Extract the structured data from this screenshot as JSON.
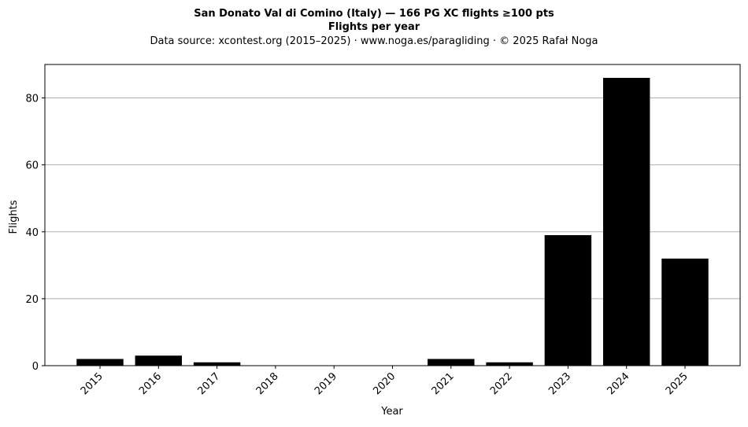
{
  "chart_data": {
    "type": "bar",
    "title": "San Donato Val di Comino (Italy)  —  166 PG XC flights ≥100 pts",
    "subtitle": "Flights per year",
    "source": "Data source: xcontest.org (2015–2025)  ·  www.noga.es/paragliding  ·  © 2025 Rafał Noga",
    "xlabel": "Year",
    "ylabel": "Flights",
    "categories": [
      "2015",
      "2016",
      "2017",
      "2018",
      "2019",
      "2020",
      "2021",
      "2022",
      "2023",
      "2024",
      "2025"
    ],
    "values": [
      2,
      3,
      1,
      0,
      0,
      0,
      2,
      1,
      39,
      86,
      32
    ],
    "ylim": [
      0,
      90
    ],
    "yticks": [
      0,
      20,
      40,
      60,
      80
    ],
    "grid": "y",
    "bar_color": "#000000",
    "grid_color": "#b0b0b0"
  }
}
